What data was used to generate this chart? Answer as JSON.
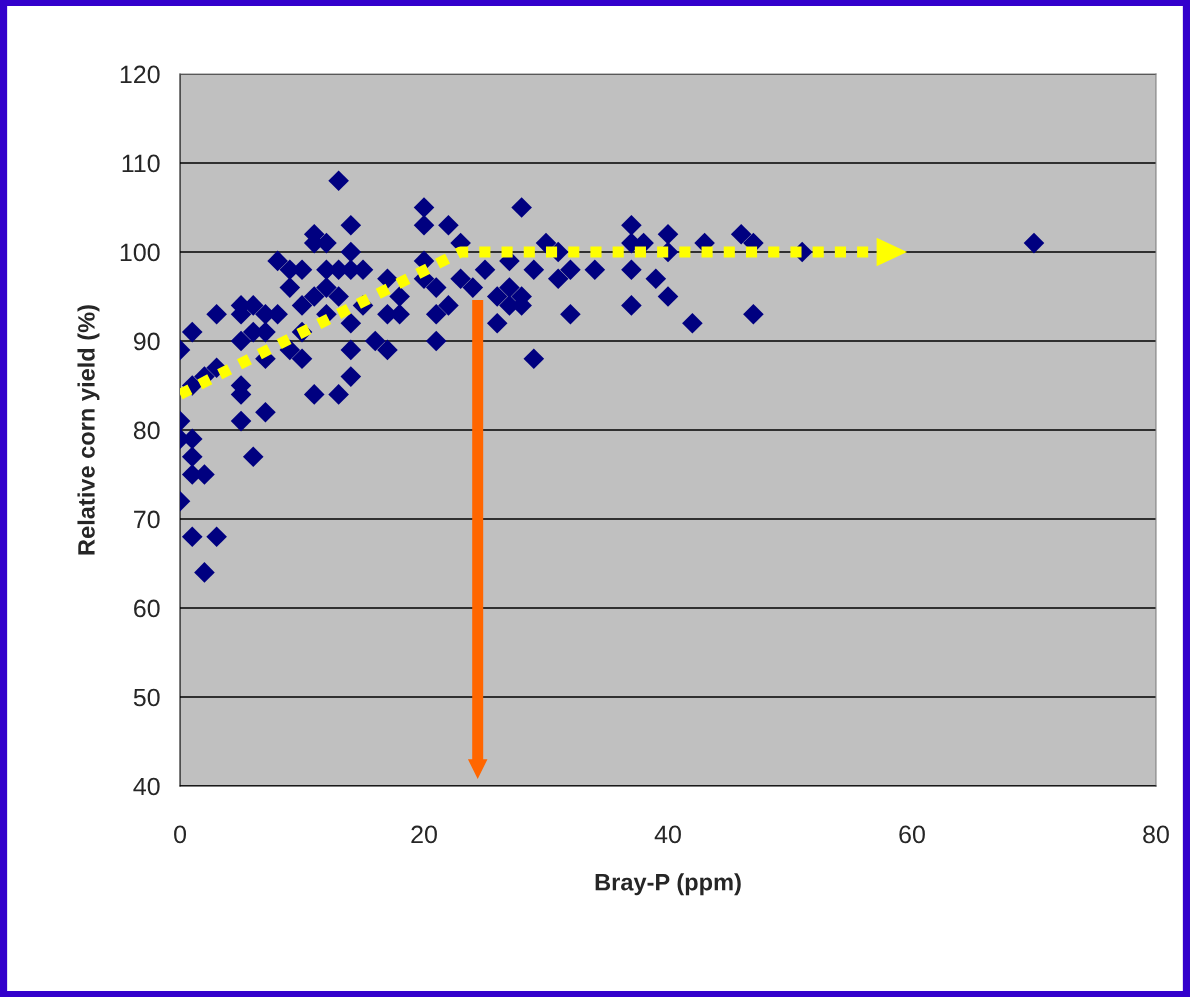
{
  "chart_data": {
    "type": "scatter",
    "xlabel": "Bray-P (ppm)",
    "ylabel": "Relative corn yield (%)",
    "xlim": [
      0,
      80
    ],
    "xticks": [
      0,
      20,
      40,
      60,
      80
    ],
    "ylim": [
      40,
      120
    ],
    "yticks": [
      40,
      50,
      60,
      70,
      80,
      90,
      100,
      110,
      120
    ],
    "grid": "y",
    "series": [
      {
        "color": "#000080",
        "marker": "diamond",
        "x": [
          0,
          0,
          0,
          0,
          1,
          1,
          1,
          1,
          1,
          1,
          2,
          2,
          2,
          3,
          3,
          3,
          5,
          5,
          5,
          5,
          5,
          5,
          6,
          6,
          6,
          7,
          7,
          7,
          7,
          8,
          8,
          9,
          9,
          9,
          10,
          10,
          10,
          10,
          11,
          11,
          11,
          11,
          12,
          12,
          12,
          12,
          13,
          13,
          13,
          13,
          14,
          14,
          14,
          14,
          14,
          14,
          15,
          15,
          16,
          17,
          17,
          17,
          18,
          18,
          20,
          20,
          20,
          20,
          21,
          21,
          21,
          22,
          22,
          23,
          23,
          24,
          25,
          26,
          26,
          27,
          27,
          27,
          28,
          28,
          28,
          29,
          29,
          30,
          31,
          31,
          32,
          32,
          34,
          37,
          37,
          37,
          37,
          38,
          39,
          40,
          40,
          40,
          42,
          43,
          46,
          47,
          47,
          51,
          70
        ],
        "values": [
          89,
          81,
          79,
          72,
          91,
          85,
          79,
          77,
          75,
          68,
          64,
          75,
          86,
          93,
          87,
          68,
          94,
          93,
          90,
          85,
          84,
          81,
          94,
          91,
          77,
          93,
          91,
          88,
          82,
          99,
          93,
          98,
          96,
          89,
          98,
          94,
          91,
          88,
          102,
          101,
          95,
          84,
          101,
          98,
          96,
          93,
          108,
          98,
          95,
          84,
          103,
          100,
          98,
          92,
          89,
          86,
          98,
          94,
          90,
          97,
          93,
          89,
          95,
          93,
          105,
          103,
          99,
          97,
          96,
          93,
          90,
          103,
          94,
          101,
          97,
          96,
          98,
          95,
          92,
          99,
          96,
          94,
          105,
          95,
          94,
          98,
          88,
          101,
          100,
          97,
          98,
          93,
          98,
          103,
          101,
          98,
          94,
          101,
          97,
          102,
          100,
          95,
          92,
          101,
          102,
          101,
          93,
          100,
          101
        ]
      },
      {
        "type": "line",
        "color": "#ffff00",
        "line_style": "dotted",
        "x": [
          0,
          23,
          56.5
        ],
        "values": [
          84,
          100,
          100
        ]
      }
    ]
  }
}
